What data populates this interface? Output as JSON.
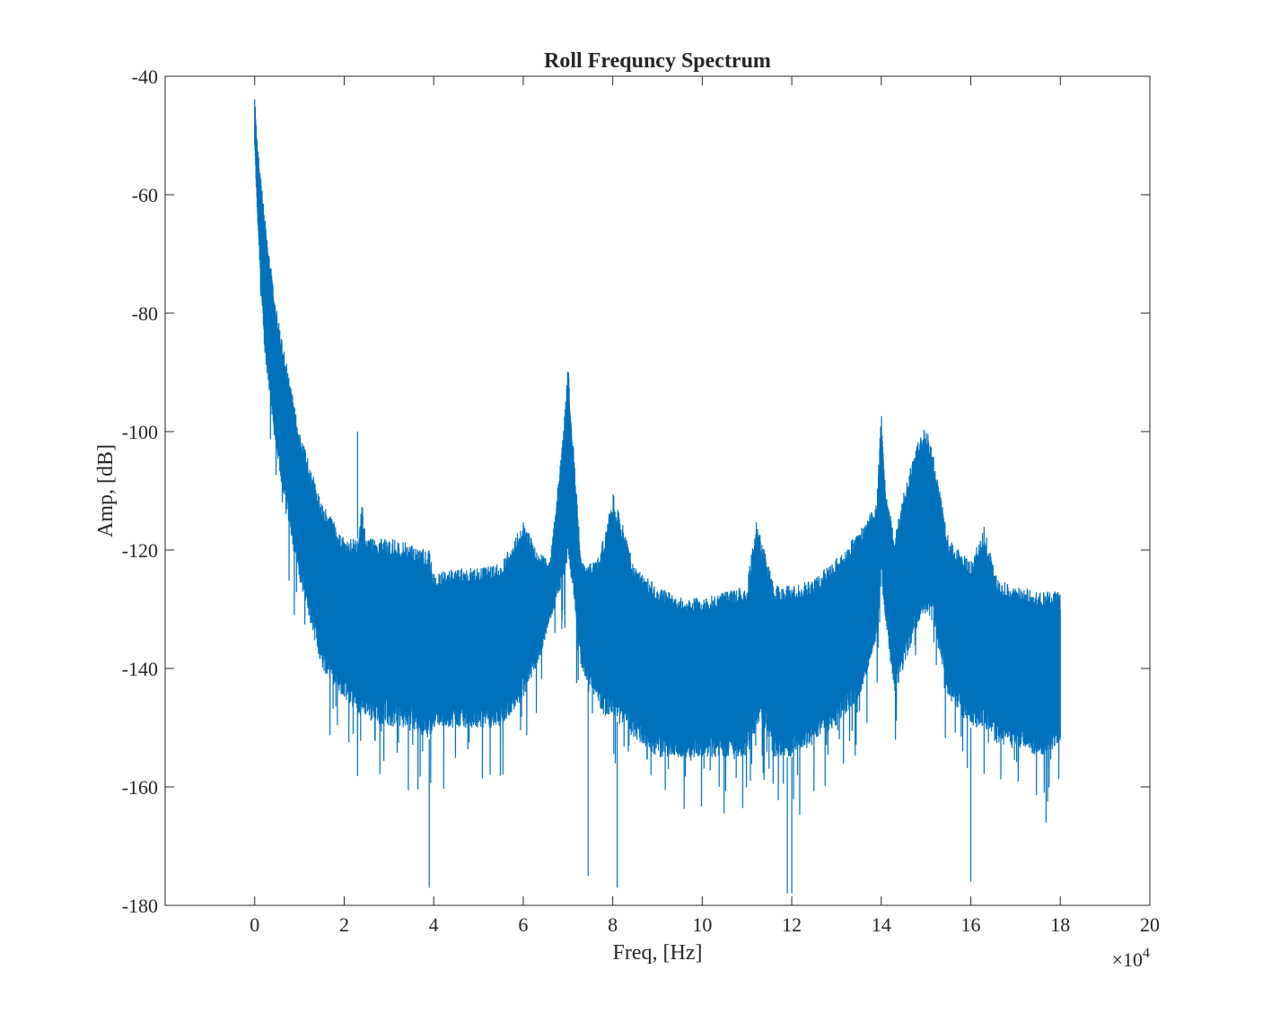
{
  "chart_data": {
    "type": "line",
    "title": "Roll Frequncy Spectrum",
    "xlabel": "Freq, [Hz]",
    "ylabel": "Amp, [dB]",
    "x_exponent_label": "×10",
    "x_exponent_power": "4",
    "xlim": [
      -2,
      20
    ],
    "ylim": [
      -180,
      -40
    ],
    "x_ticks": [
      0,
      2,
      4,
      6,
      8,
      10,
      12,
      14,
      16,
      18,
      20
    ],
    "x_tick_labels": [
      "0",
      "2",
      "4",
      "6",
      "8",
      "10",
      "12",
      "14",
      "16",
      "18",
      "20"
    ],
    "y_ticks": [
      -180,
      -160,
      -140,
      -120,
      -100,
      -80,
      -60,
      -40
    ],
    "y_tick_labels": [
      "-180",
      "-160",
      "-140",
      "-120",
      "-100",
      "-80",
      "-60",
      "-40"
    ],
    "grid": false,
    "series": [
      {
        "color": "#0072BD",
        "envelope_x": [
          0,
          0.05,
          0.2,
          0.5,
          1.0,
          1.5,
          2.0,
          2.3,
          2.4,
          2.5,
          3.0,
          3.5,
          3.9,
          4.0,
          4.5,
          5.0,
          5.5,
          6.0,
          6.3,
          6.6,
          6.9,
          7.0,
          7.1,
          7.3,
          7.6,
          7.8,
          8.0,
          8.2,
          8.5,
          9.0,
          9.5,
          10.0,
          10.5,
          11.0,
          11.2,
          11.4,
          11.6,
          12.0,
          12.5,
          13.0,
          13.5,
          13.9,
          14.0,
          14.1,
          14.3,
          14.5,
          14.8,
          15.0,
          15.2,
          15.5,
          16.0,
          16.3,
          16.6,
          17.0,
          17.5,
          18.0
        ],
        "upper_db": [
          -43,
          -50,
          -62,
          -80,
          -100,
          -112,
          -118,
          -118,
          -112,
          -118,
          -118,
          -119,
          -120,
          -124,
          -123,
          -123,
          -122,
          -115,
          -120,
          -122,
          -100,
          -88,
          -100,
          -122,
          -122,
          -118,
          -110,
          -115,
          -123,
          -126,
          -128,
          -128,
          -127,
          -126,
          -115,
          -120,
          -126,
          -126,
          -125,
          -121,
          -117,
          -112,
          -96,
          -110,
          -118,
          -110,
          -102,
          -99,
          -105,
          -118,
          -122,
          -116,
          -125,
          -126,
          -127,
          -127
        ],
        "lower_db": [
          -52,
          -62,
          -85,
          -105,
          -125,
          -140,
          -145,
          -148,
          -148,
          -148,
          -150,
          -150,
          -152,
          -150,
          -150,
          -150,
          -150,
          -145,
          -140,
          -132,
          -125,
          -122,
          -126,
          -140,
          -145,
          -148,
          -148,
          -150,
          -152,
          -155,
          -155,
          -155,
          -155,
          -155,
          -150,
          -150,
          -155,
          -155,
          -152,
          -150,
          -145,
          -135,
          -125,
          -132,
          -145,
          -140,
          -133,
          -130,
          -133,
          -145,
          -150,
          -150,
          -153,
          -153,
          -155,
          -153
        ],
        "spikes": [
          {
            "x": 2.3,
            "y": -100
          },
          {
            "x": 3.9,
            "y": -177
          },
          {
            "x": 8.1,
            "y": -177
          },
          {
            "x": 11.9,
            "y": -178
          },
          {
            "x": 12.0,
            "y": -178
          },
          {
            "x": 7.45,
            "y": -175
          },
          {
            "x": 16.0,
            "y": -176
          }
        ]
      }
    ]
  }
}
